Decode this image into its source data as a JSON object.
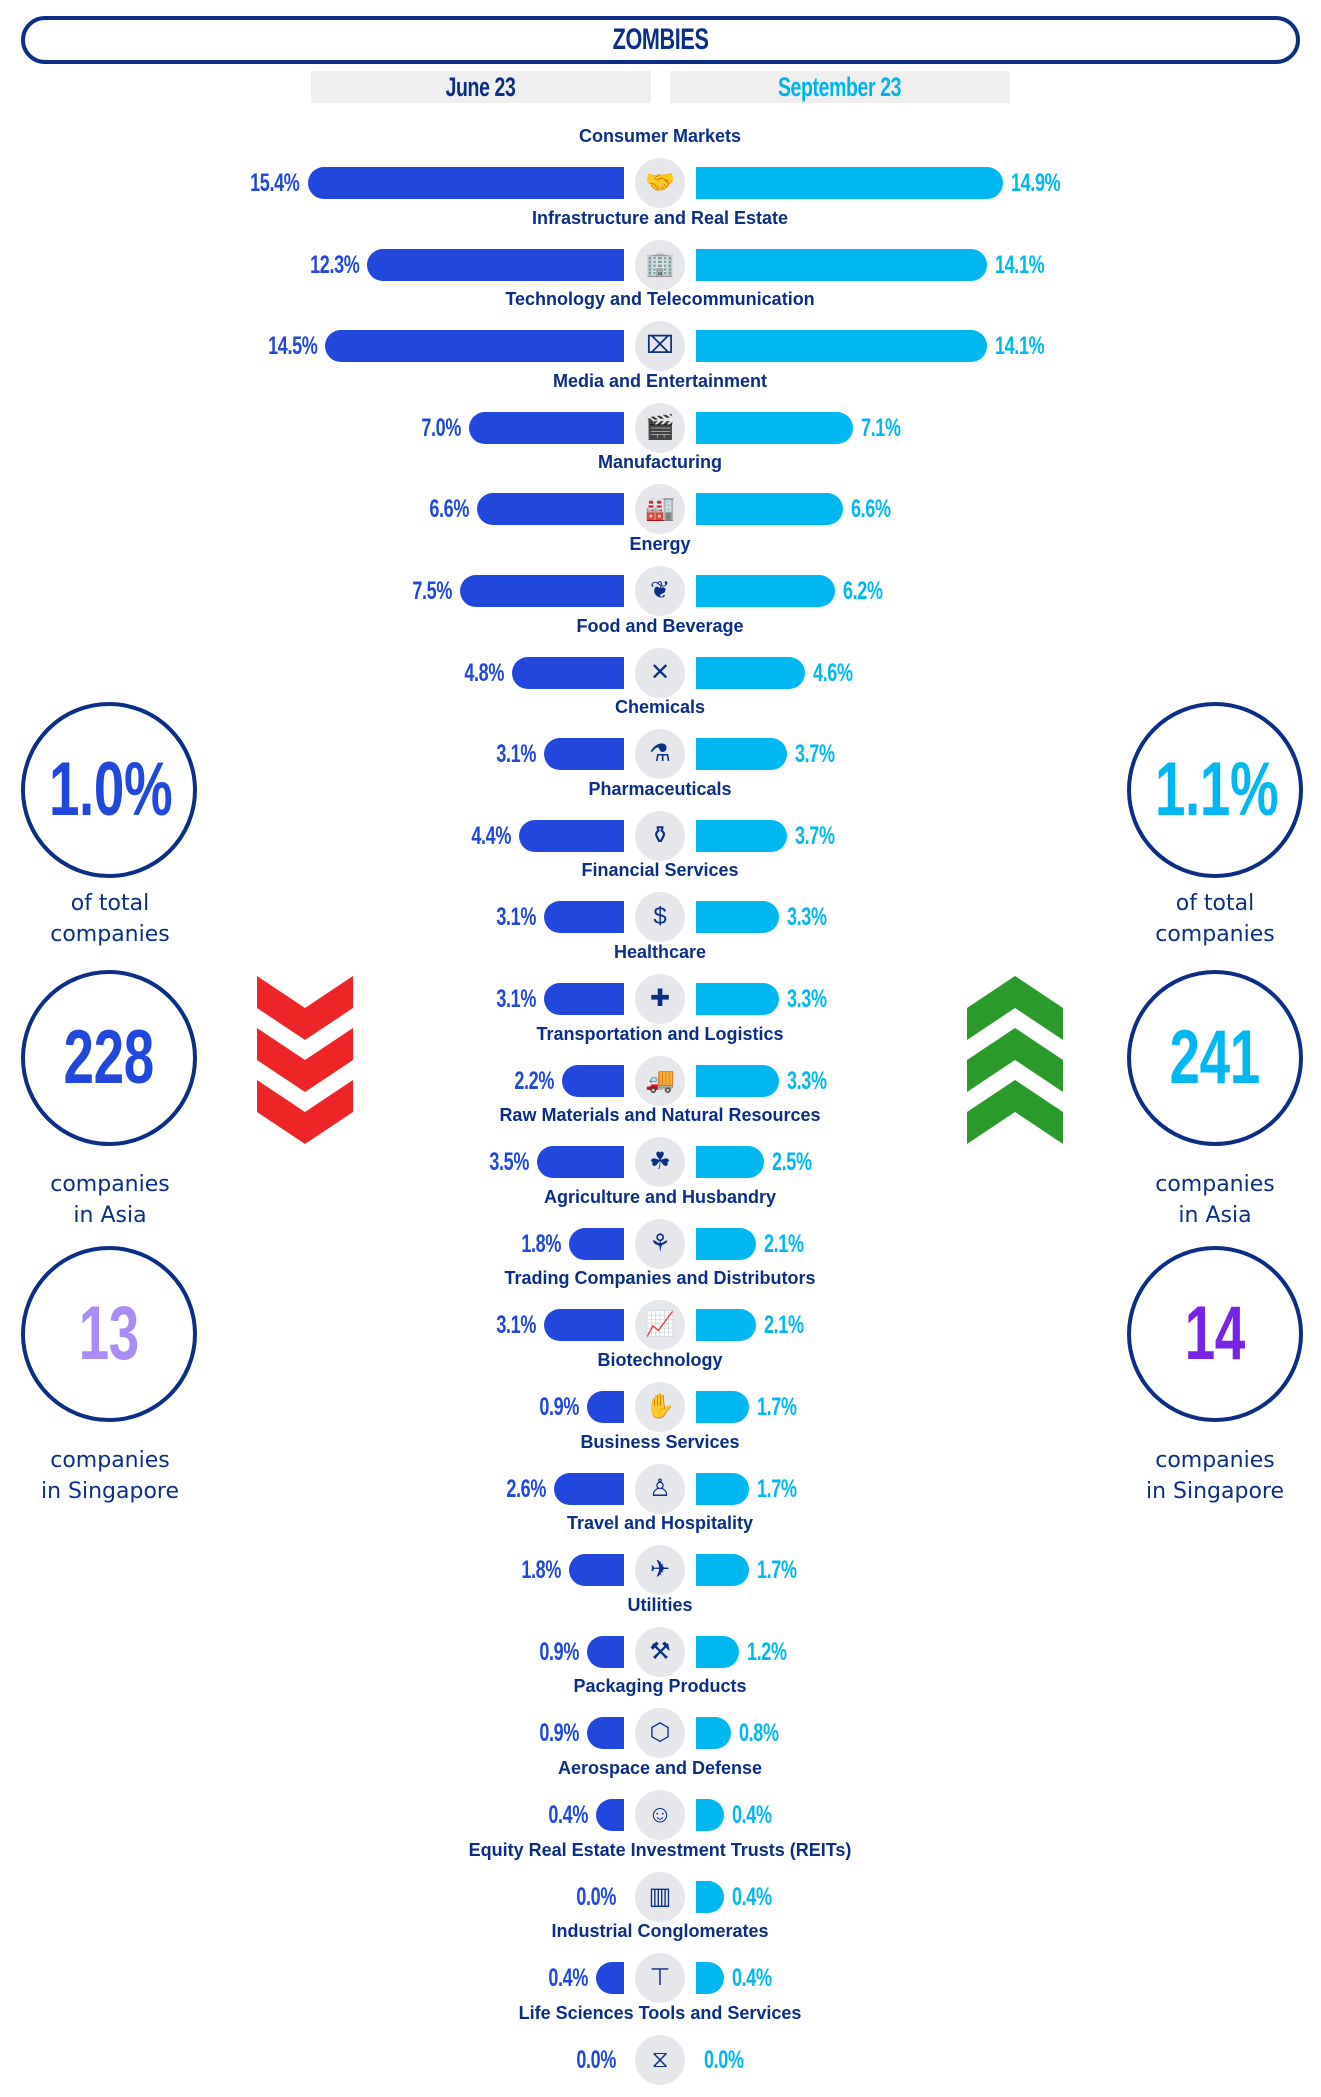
{
  "title": "ZOMBIES",
  "periods": {
    "left": "June 23",
    "right": "September 23"
  },
  "colors": {
    "left": "#2148dc",
    "right": "#00b8f1",
    "navy": "#0b2f86",
    "down": "#ee2527",
    "up": "#2a9b2a",
    "sg_left": "#a98cf5",
    "sg_right": "#7a22e6"
  },
  "left_stats": {
    "share": "1.0%",
    "share_label_1": "of total",
    "share_label_2": "companies",
    "asia": "228",
    "asia_label_1": "companies",
    "asia_label_2": "in Asia",
    "sg": "13",
    "sg_label_1": "companies",
    "sg_label_2": "in Singapore",
    "trend_icon": "chevrons-down-icon"
  },
  "right_stats": {
    "share": "1.1%",
    "share_label_1": "of total",
    "share_label_2": "companies",
    "asia": "241",
    "asia_label_1": "companies",
    "asia_label_2": "in Asia",
    "sg": "14",
    "sg_label_1": "companies",
    "sg_label_2": "in Singapore",
    "trend_icon": "chevrons-up-icon"
  },
  "chart_data": {
    "type": "bar",
    "title": "ZOMBIES",
    "series_names": [
      "June 23",
      "September 23"
    ],
    "unit": "%",
    "categories": [
      {
        "name": "Consumer Markets",
        "june": 15.4,
        "sept": 14.9,
        "icon": "handshake-icon",
        "glyph": "🤝"
      },
      {
        "name": "Infrastructure and Real Estate",
        "june": 12.3,
        "sept": 14.1,
        "icon": "building-icon",
        "glyph": "🏢"
      },
      {
        "name": "Technology and Telecommunication",
        "june": 14.5,
        "sept": 14.1,
        "icon": "presentation-board-icon",
        "glyph": "⌧"
      },
      {
        "name": "Media and Entertainment",
        "june": 7.0,
        "sept": 7.1,
        "icon": "clapperboard-icon",
        "glyph": "🎬"
      },
      {
        "name": "Manufacturing",
        "june": 6.6,
        "sept": 6.6,
        "icon": "factory-icon",
        "glyph": "🏭"
      },
      {
        "name": "Energy",
        "june": 7.5,
        "sept": 6.2,
        "icon": "leaf-energy-icon",
        "glyph": "❦"
      },
      {
        "name": "Food and Beverage",
        "june": 4.8,
        "sept": 4.6,
        "icon": "fork-knife-icon",
        "glyph": "✕"
      },
      {
        "name": "Chemicals",
        "june": 3.1,
        "sept": 3.7,
        "icon": "chemicals-icon",
        "glyph": "⚗"
      },
      {
        "name": "Pharmaceuticals",
        "june": 4.4,
        "sept": 3.7,
        "icon": "pill-bottle-icon",
        "glyph": "⚱"
      },
      {
        "name": "Financial Services",
        "june": 3.1,
        "sept": 3.3,
        "icon": "money-bag-icon",
        "glyph": "$"
      },
      {
        "name": "Healthcare",
        "june": 3.1,
        "sept": 3.3,
        "icon": "hospital-icon",
        "glyph": "✚"
      },
      {
        "name": "Transportation and Logistics",
        "june": 2.2,
        "sept": 3.3,
        "icon": "truck-icon",
        "glyph": "🚚"
      },
      {
        "name": "Raw Materials and Natural Resources",
        "june": 3.5,
        "sept": 2.5,
        "icon": "plant-hand-icon",
        "glyph": "☘"
      },
      {
        "name": "Agriculture and Husbandry",
        "june": 1.8,
        "sept": 2.1,
        "icon": "wheat-icon",
        "glyph": "⚘"
      },
      {
        "name": "Trading Companies and Distributors",
        "june": 3.1,
        "sept": 2.1,
        "icon": "growth-chart-icon",
        "glyph": "📈"
      },
      {
        "name": "Biotechnology",
        "june": 0.9,
        "sept": 1.7,
        "icon": "hand-leaf-icon",
        "glyph": "✋"
      },
      {
        "name": "Business Services",
        "june": 2.6,
        "sept": 1.7,
        "icon": "seated-person-icon",
        "glyph": "♙"
      },
      {
        "name": "Travel and Hospitality",
        "june": 1.8,
        "sept": 1.7,
        "icon": "airplane-icon",
        "glyph": "✈"
      },
      {
        "name": "Utilities",
        "june": 0.9,
        "sept": 1.2,
        "icon": "tools-icon",
        "glyph": "⚒"
      },
      {
        "name": "Packaging Products",
        "june": 0.9,
        "sept": 0.8,
        "icon": "box-icon",
        "glyph": "⬡"
      },
      {
        "name": "Aerospace and Defense",
        "june": 0.4,
        "sept": 0.4,
        "icon": "soldier-icon",
        "glyph": "☺"
      },
      {
        "name": "Equity Real Estate Investment Trusts (REITs)",
        "june": 0.0,
        "sept": 0.4,
        "icon": "tower-icon",
        "glyph": "▥"
      },
      {
        "name": "Industrial Conglomerates",
        "june": 0.4,
        "sept": 0.4,
        "icon": "crane-icon",
        "glyph": "⊤"
      },
      {
        "name": "Life Sciences Tools and Services",
        "june": 0.0,
        "sept": 0.0,
        "icon": "dna-icon",
        "glyph": "⧖"
      }
    ]
  }
}
